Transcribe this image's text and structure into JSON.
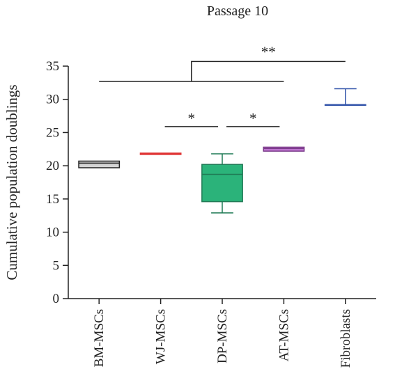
{
  "chart_data": {
    "type": "box",
    "title": "Passage 10",
    "xlabel": "",
    "ylabel": "Cumulative population doublings",
    "ylim": [
      0,
      35
    ],
    "yticks": [
      0,
      5,
      10,
      15,
      20,
      25,
      30,
      35
    ],
    "categories": [
      "BM-MSCs",
      "WJ-MSCs",
      "DP-MSCs",
      "AT-MSCs",
      "Fibroblasts"
    ],
    "boxes": [
      {
        "category": "BM-MSCs",
        "min": 19.7,
        "q1": 19.7,
        "median": 20.4,
        "q3": 20.7,
        "max": 20.7,
        "fill": "#d4d4d4",
        "stroke": "#222222"
      },
      {
        "category": "WJ-MSCs",
        "min": 21.7,
        "q1": 21.7,
        "median": 21.8,
        "q3": 21.9,
        "max": 21.9,
        "fill": "#e03535",
        "stroke": "#e03535"
      },
      {
        "category": "DP-MSCs",
        "min": 12.9,
        "q1": 14.6,
        "median": 18.7,
        "q3": 20.2,
        "max": 21.8,
        "fill": "#2bb37a",
        "stroke": "#1f7a55"
      },
      {
        "category": "AT-MSCs",
        "min": 22.2,
        "q1": 22.2,
        "median": 22.6,
        "q3": 22.8,
        "max": 22.8,
        "fill": "#c57ad6",
        "stroke": "#7a3a8a"
      },
      {
        "category": "Fibroblasts",
        "min": 29.2,
        "q1": 29.2,
        "median": 29.2,
        "q3": 29.2,
        "max": 31.6,
        "fill": "none",
        "stroke": "#3355aa"
      }
    ],
    "significance": [
      {
        "from": "WJ-MSCs",
        "to": "DP-MSCs",
        "y": 25.9,
        "label": "*"
      },
      {
        "from": "DP-MSCs",
        "to": "AT-MSCs",
        "y": 25.9,
        "label": "*"
      },
      {
        "from": "BM-MSCs",
        "to": "AT-MSCs",
        "y": 32.7,
        "label": ""
      },
      {
        "from": "BM-MSCs",
        "to": "Fibroblasts",
        "y": 35.7,
        "label": "**",
        "bracket": "grouped"
      }
    ],
    "grid": false,
    "axis_color": "#222222"
  }
}
